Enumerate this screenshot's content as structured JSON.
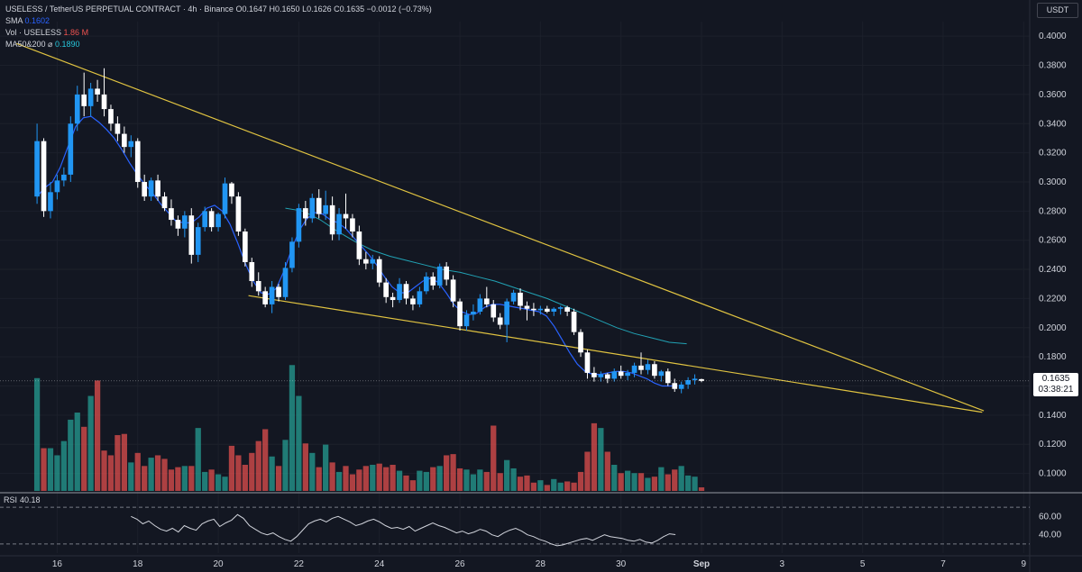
{
  "header": {
    "symbol": "USELESS / TetherUS PERPETUAL CONTRACT · 4h · Binance",
    "o_label": "O",
    "o": "0.1647",
    "h_label": "H",
    "h": "0.1650",
    "l_label": "L",
    "l": "0.1626",
    "c_label": "C",
    "c": "0.1635",
    "change": "−0.0012 (−0.73%)",
    "sma_label": "SMA",
    "sma_value": "0.1602",
    "vol_label": "Vol · USELESS",
    "vol_value": "1.86 M",
    "ma_label": "MA50&200",
    "ma_symbol": "⌀",
    "ma_value": "0.1890"
  },
  "currency_button": "USDT",
  "price_tag": {
    "price": "0.1635",
    "countdown": "03:38:21"
  },
  "rsi": {
    "label": "RSI",
    "value": "40.18"
  },
  "colors": {
    "background": "#131722",
    "up": "#2196f3",
    "down": "#ffffff",
    "vol_up": "#26a69a",
    "vol_down": "#ef5350",
    "sma": "#2962ff",
    "ma": "#26c6da",
    "trendline": "#e0c341",
    "rsi": "#d1d4dc"
  },
  "chart_data": {
    "type": "candlestick",
    "title": "USELESS / TetherUS PERPETUAL CONTRACT · 4h · Binance",
    "ylim": [
      0.088,
      0.41
    ],
    "y_ticks": [
      "0.4000",
      "0.3800",
      "0.3600",
      "0.3400",
      "0.3200",
      "0.3000",
      "0.2800",
      "0.2600",
      "0.2400",
      "0.2200",
      "0.2000",
      "0.1800",
      "0.1600",
      "0.1400",
      "0.1200",
      "0.1000"
    ],
    "x_labels": [
      {
        "label": "16",
        "day": 16
      },
      {
        "label": "18",
        "day": 18
      },
      {
        "label": "20",
        "day": 20
      },
      {
        "label": "22",
        "day": 22
      },
      {
        "label": "24",
        "day": 24
      },
      {
        "label": "26",
        "day": 26
      },
      {
        "label": "28",
        "day": 28
      },
      {
        "label": "30",
        "day": 30
      },
      {
        "label": "Sep",
        "day": 32
      },
      {
        "label": "3",
        "day": 34
      },
      {
        "label": "5",
        "day": 36
      },
      {
        "label": "7",
        "day": 38
      },
      {
        "label": "9",
        "day": 40
      }
    ],
    "x_range_days": [
      14.58,
      40.15
    ],
    "start_day": 15.5,
    "bars_per_day": 6,
    "candles": [
      [
        0.29,
        0.34,
        0.285,
        0.328
      ],
      [
        0.328,
        0.33,
        0.276,
        0.28
      ],
      [
        0.28,
        0.3,
        0.275,
        0.293
      ],
      [
        0.293,
        0.305,
        0.288,
        0.301
      ],
      [
        0.301,
        0.31,
        0.297,
        0.305
      ],
      [
        0.305,
        0.345,
        0.3,
        0.34
      ],
      [
        0.34,
        0.366,
        0.335,
        0.36
      ],
      [
        0.36,
        0.375,
        0.345,
        0.352
      ],
      [
        0.352,
        0.368,
        0.345,
        0.364
      ],
      [
        0.364,
        0.37,
        0.355,
        0.36
      ],
      [
        0.36,
        0.378,
        0.345,
        0.35
      ],
      [
        0.35,
        0.353,
        0.335,
        0.34
      ],
      [
        0.34,
        0.345,
        0.328,
        0.333
      ],
      [
        0.333,
        0.338,
        0.32,
        0.324
      ],
      [
        0.324,
        0.332,
        0.317,
        0.328
      ],
      [
        0.328,
        0.33,
        0.296,
        0.3
      ],
      [
        0.3,
        0.305,
        0.287,
        0.29
      ],
      [
        0.29,
        0.303,
        0.287,
        0.301
      ],
      [
        0.301,
        0.305,
        0.287,
        0.29
      ],
      [
        0.29,
        0.293,
        0.28,
        0.282
      ],
      [
        0.282,
        0.288,
        0.27,
        0.274
      ],
      [
        0.274,
        0.277,
        0.263,
        0.268
      ],
      [
        0.268,
        0.28,
        0.262,
        0.277
      ],
      [
        0.277,
        0.282,
        0.244,
        0.25
      ],
      [
        0.25,
        0.272,
        0.245,
        0.269
      ],
      [
        0.269,
        0.283,
        0.266,
        0.28
      ],
      [
        0.28,
        0.282,
        0.266,
        0.269
      ],
      [
        0.269,
        0.279,
        0.266,
        0.278
      ],
      [
        0.278,
        0.303,
        0.275,
        0.299
      ],
      [
        0.299,
        0.3,
        0.285,
        0.29
      ],
      [
        0.29,
        0.293,
        0.263,
        0.266
      ],
      [
        0.266,
        0.268,
        0.242,
        0.245
      ],
      [
        0.245,
        0.248,
        0.228,
        0.232
      ],
      [
        0.232,
        0.238,
        0.222,
        0.225
      ],
      [
        0.225,
        0.228,
        0.214,
        0.216
      ],
      [
        0.216,
        0.232,
        0.21,
        0.228
      ],
      [
        0.228,
        0.23,
        0.218,
        0.221
      ],
      [
        0.221,
        0.245,
        0.219,
        0.241
      ],
      [
        0.241,
        0.262,
        0.238,
        0.259
      ],
      [
        0.259,
        0.285,
        0.255,
        0.282
      ],
      [
        0.282,
        0.287,
        0.27,
        0.275
      ],
      [
        0.275,
        0.292,
        0.272,
        0.289
      ],
      [
        0.289,
        0.295,
        0.275,
        0.278
      ],
      [
        0.278,
        0.294,
        0.274,
        0.284
      ],
      [
        0.284,
        0.29,
        0.26,
        0.264
      ],
      [
        0.264,
        0.282,
        0.26,
        0.278
      ],
      [
        0.278,
        0.292,
        0.268,
        0.275
      ],
      [
        0.275,
        0.278,
        0.262,
        0.266
      ],
      [
        0.266,
        0.27,
        0.243,
        0.247
      ],
      [
        0.247,
        0.252,
        0.24,
        0.244
      ],
      [
        0.244,
        0.25,
        0.24,
        0.247
      ],
      [
        0.247,
        0.249,
        0.228,
        0.231
      ],
      [
        0.231,
        0.234,
        0.217,
        0.221
      ],
      [
        0.221,
        0.224,
        0.214,
        0.219
      ],
      [
        0.219,
        0.234,
        0.217,
        0.23
      ],
      [
        0.23,
        0.232,
        0.216,
        0.22
      ],
      [
        0.22,
        0.222,
        0.212,
        0.216
      ],
      [
        0.216,
        0.228,
        0.214,
        0.225
      ],
      [
        0.225,
        0.238,
        0.223,
        0.235
      ],
      [
        0.235,
        0.238,
        0.226,
        0.229
      ],
      [
        0.229,
        0.244,
        0.227,
        0.242
      ],
      [
        0.242,
        0.245,
        0.229,
        0.233
      ],
      [
        0.233,
        0.236,
        0.214,
        0.218
      ],
      [
        0.218,
        0.22,
        0.198,
        0.201
      ],
      [
        0.201,
        0.212,
        0.198,
        0.209
      ],
      [
        0.209,
        0.216,
        0.205,
        0.211
      ],
      [
        0.211,
        0.223,
        0.209,
        0.22
      ],
      [
        0.22,
        0.228,
        0.214,
        0.216
      ],
      [
        0.216,
        0.219,
        0.204,
        0.207
      ],
      [
        0.207,
        0.21,
        0.199,
        0.202
      ],
      [
        0.202,
        0.22,
        0.19,
        0.218
      ],
      [
        0.218,
        0.226,
        0.216,
        0.224
      ],
      [
        0.224,
        0.227,
        0.212,
        0.215
      ],
      [
        0.215,
        0.218,
        0.205,
        0.213
      ],
      [
        0.213,
        0.217,
        0.208,
        0.212
      ],
      [
        0.212,
        0.215,
        0.209,
        0.213
      ],
      [
        0.213,
        0.215,
        0.21,
        0.211
      ],
      [
        0.211,
        0.214,
        0.208,
        0.213
      ],
      [
        0.213,
        0.215,
        0.209,
        0.214
      ],
      [
        0.214,
        0.215,
        0.208,
        0.211
      ],
      [
        0.211,
        0.213,
        0.195,
        0.197
      ],
      [
        0.197,
        0.199,
        0.18,
        0.183
      ],
      [
        0.183,
        0.185,
        0.165,
        0.169
      ],
      [
        0.169,
        0.173,
        0.163,
        0.166
      ],
      [
        0.166,
        0.17,
        0.163,
        0.168
      ],
      [
        0.168,
        0.169,
        0.162,
        0.165
      ],
      [
        0.165,
        0.172,
        0.163,
        0.17
      ],
      [
        0.17,
        0.174,
        0.165,
        0.167
      ],
      [
        0.167,
        0.171,
        0.164,
        0.169
      ],
      [
        0.169,
        0.176,
        0.166,
        0.174
      ],
      [
        0.174,
        0.183,
        0.168,
        0.171
      ],
      [
        0.171,
        0.178,
        0.168,
        0.175
      ],
      [
        0.175,
        0.177,
        0.165,
        0.167
      ],
      [
        0.167,
        0.171,
        0.163,
        0.17
      ],
      [
        0.17,
        0.172,
        0.16,
        0.162
      ],
      [
        0.162,
        0.165,
        0.156,
        0.158
      ],
      [
        0.158,
        0.163,
        0.155,
        0.161
      ],
      [
        0.161,
        0.166,
        0.158,
        0.164
      ],
      [
        0.164,
        0.168,
        0.161,
        0.165
      ],
      [
        0.1647,
        0.165,
        0.1626,
        0.1635
      ]
    ],
    "volumes": [
      0.95,
      0.36,
      0.36,
      0.3,
      0.42,
      0.6,
      0.66,
      0.54,
      0.8,
      0.93,
      0.34,
      0.3,
      0.47,
      0.48,
      0.24,
      0.32,
      0.21,
      0.28,
      0.3,
      0.27,
      0.18,
      0.2,
      0.21,
      0.21,
      0.53,
      0.16,
      0.18,
      0.14,
      0.12,
      0.38,
      0.3,
      0.22,
      0.32,
      0.42,
      0.52,
      0.29,
      0.21,
      0.43,
      1.06,
      0.8,
      0.4,
      0.32,
      0.2,
      0.39,
      0.24,
      0.16,
      0.21,
      0.14,
      0.18,
      0.21,
      0.22,
      0.23,
      0.2,
      0.22,
      0.17,
      0.13,
      0.09,
      0.17,
      0.16,
      0.2,
      0.21,
      0.3,
      0.31,
      0.19,
      0.18,
      0.14,
      0.18,
      0.16,
      0.55,
      0.15,
      0.26,
      0.19,
      0.12,
      0.13,
      0.07,
      0.09,
      0.05,
      0.1,
      0.07,
      0.08,
      0.07,
      0.16,
      0.33,
      0.57,
      0.53,
      0.33,
      0.22,
      0.15,
      0.17,
      0.15,
      0.15,
      0.11,
      0.12,
      0.2,
      0.14,
      0.18,
      0.21,
      0.13,
      0.12,
      0.03
    ],
    "sma": [
      [
        0.29,
        "a"
      ],
      [
        0.296,
        0
      ],
      [
        0.3,
        0
      ],
      [
        0.31,
        0
      ],
      [
        0.324,
        0
      ],
      [
        0.338,
        0
      ],
      [
        0.344,
        0
      ],
      [
        0.345,
        0
      ],
      [
        0.341,
        0
      ],
      [
        0.336,
        0
      ],
      [
        0.33,
        0
      ],
      [
        0.322,
        0
      ],
      [
        0.313,
        0
      ],
      [
        0.305,
        0
      ],
      [
        0.298,
        0
      ],
      [
        0.292,
        0
      ],
      [
        0.285,
        0
      ],
      [
        0.279,
        0
      ],
      [
        0.273,
        0
      ],
      [
        0.272,
        0
      ],
      [
        0.272,
        0
      ],
      [
        0.276,
        0
      ],
      [
        0.282,
        0
      ],
      [
        0.284,
        0
      ],
      [
        0.28,
        0
      ],
      [
        0.271,
        0
      ],
      [
        0.258,
        0
      ],
      [
        0.244,
        0
      ],
      [
        0.232,
        0
      ],
      [
        0.224,
        0
      ],
      [
        0.223,
        0
      ],
      [
        0.227,
        0
      ],
      [
        0.239,
        0
      ],
      [
        0.254,
        0
      ],
      [
        0.267,
        0
      ],
      [
        0.275,
        0
      ],
      [
        0.279,
        0
      ],
      [
        0.278,
        0
      ],
      [
        0.274,
        0
      ],
      [
        0.272,
        0
      ],
      [
        0.268,
        0
      ],
      [
        0.262,
        0
      ],
      [
        0.256,
        0
      ],
      [
        0.25,
        0
      ],
      [
        0.243,
        0
      ],
      [
        0.235,
        0
      ],
      [
        0.228,
        0
      ],
      [
        0.224,
        0
      ],
      [
        0.224,
        0
      ],
      [
        0.228,
        0
      ],
      [
        0.232,
        0
      ],
      [
        0.234,
        0
      ],
      [
        0.231,
        0
      ],
      [
        0.224,
        0
      ],
      [
        0.216,
        0
      ],
      [
        0.211,
        0
      ],
      [
        0.209,
        0
      ],
      [
        0.21,
        0
      ],
      [
        0.214,
        0
      ],
      [
        0.216,
        0
      ],
      [
        0.216,
        0
      ],
      [
        0.215,
        0
      ],
      [
        0.214,
        0
      ],
      [
        0.213,
        0
      ],
      [
        0.212,
        0
      ],
      [
        0.211,
        0
      ],
      [
        0.208,
        0
      ],
      [
        0.201,
        0
      ],
      [
        0.192,
        0
      ],
      [
        0.183,
        0
      ],
      [
        0.175,
        0
      ],
      [
        0.17,
        0
      ],
      [
        0.168,
        0
      ],
      [
        0.168,
        0
      ],
      [
        0.169,
        0
      ],
      [
        0.17,
        0
      ],
      [
        0.17,
        0
      ],
      [
        0.169,
        0
      ],
      [
        0.167,
        0
      ],
      [
        0.165,
        0
      ],
      [
        0.162,
        0
      ],
      [
        0.16,
        0
      ],
      [
        0.16,
        0
      ],
      [
        0.1602,
        0
      ]
    ],
    "ma50": [
      [
        0.282,
        "a"
      ],
      [
        0.28,
        0
      ],
      [
        0.274,
        0
      ],
      [
        0.266,
        0
      ],
      [
        0.259,
        0
      ],
      [
        0.253,
        0
      ],
      [
        0.249,
        0
      ],
      [
        0.246,
        0
      ],
      [
        0.243,
        0
      ],
      [
        0.24,
        0
      ],
      [
        0.238,
        0
      ],
      [
        0.235,
        0
      ],
      [
        0.232,
        0
      ],
      [
        0.228,
        0
      ],
      [
        0.224,
        0
      ],
      [
        0.22,
        0
      ],
      [
        0.215,
        0
      ],
      [
        0.21,
        0
      ],
      [
        0.205,
        0
      ],
      [
        0.2,
        0
      ],
      [
        0.196,
        0
      ],
      [
        0.193,
        0
      ],
      [
        0.19,
        0
      ],
      [
        0.189,
        0
      ]
    ],
    "rsi": [
      60,
      57,
      52,
      55,
      50,
      46,
      44,
      47,
      43,
      50,
      47,
      45,
      52,
      55,
      57,
      49,
      53,
      56,
      62,
      58,
      50,
      46,
      42,
      40,
      42,
      38,
      35,
      33,
      38,
      45,
      52,
      55,
      57,
      54,
      58,
      60,
      57,
      54,
      50,
      52,
      55,
      57,
      54,
      50,
      47,
      48,
      46,
      49,
      44,
      47,
      50,
      53,
      50,
      48,
      45,
      42,
      44,
      41,
      43,
      46,
      44,
      40,
      38,
      42,
      45,
      47,
      44,
      40,
      38,
      35,
      33,
      30,
      28,
      29,
      31,
      33,
      35,
      36,
      34,
      37,
      40,
      38,
      37,
      36,
      34,
      33,
      35,
      32,
      31,
      34,
      38,
      41,
      40.18
    ],
    "rsi_ticks": [
      "60.00",
      "40.00"
    ],
    "rsi_range": [
      20,
      80
    ],
    "trendlines": [
      {
        "name": "upper",
        "x": [
          14.99,
          39.01
        ],
        "y": [
          0.395,
          0.143
        ]
      },
      {
        "name": "lower",
        "x": [
          20.75,
          38.97
        ],
        "y": [
          0.222,
          0.142
        ]
      }
    ]
  }
}
